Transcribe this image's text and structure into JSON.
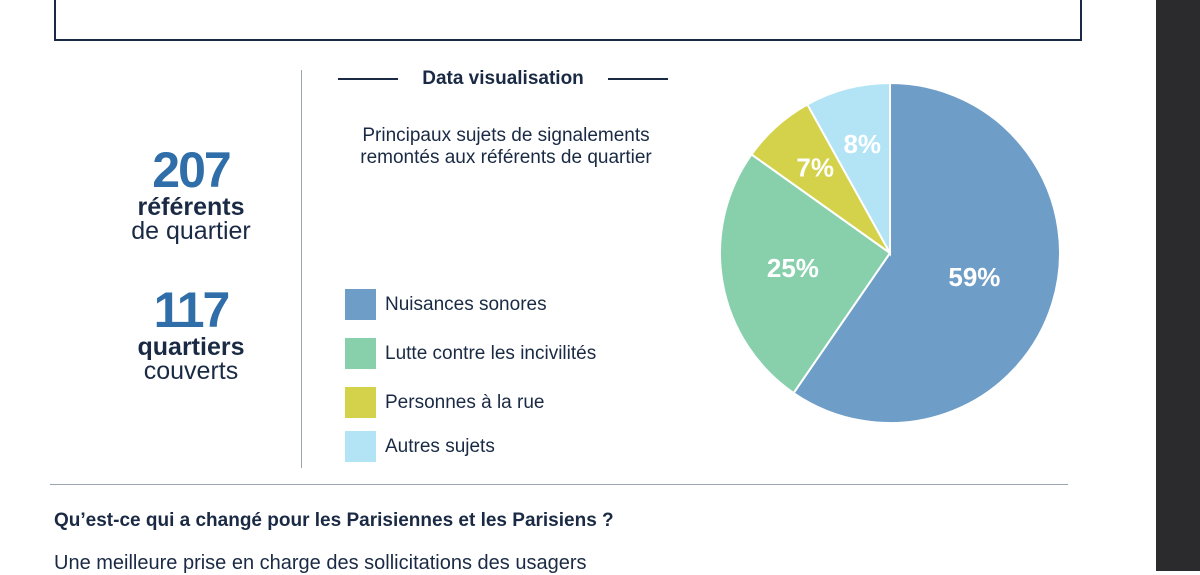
{
  "stats": [
    {
      "number": "207",
      "label_bold": "référents",
      "label_light": "de quartier"
    },
    {
      "number": "117",
      "label_bold": "quartiers",
      "label_light": "couverts"
    }
  ],
  "section_title": "Data visualisation",
  "chart_data": {
    "type": "pie",
    "title": "Principaux sujets de signalements remontés aux référents de quartier",
    "legend_position": "left",
    "categories": [
      "Nuisances sonores",
      "Lutte contre les incivilités",
      "Personnes à la rue",
      "Autres sujets"
    ],
    "values": [
      59,
      25,
      7,
      8
    ],
    "labels": [
      "59%",
      "25%",
      "7%",
      "8%"
    ],
    "colors": [
      "#6e9dc8",
      "#88d0ac",
      "#d3d24a",
      "#b2e4f5"
    ]
  },
  "bottom": {
    "heading": "Qu’est-ce qui a changé pour les Parisiennes et les Parisiens ?",
    "subheading": "Une meilleure prise en charge des sollicitations des usagers"
  }
}
